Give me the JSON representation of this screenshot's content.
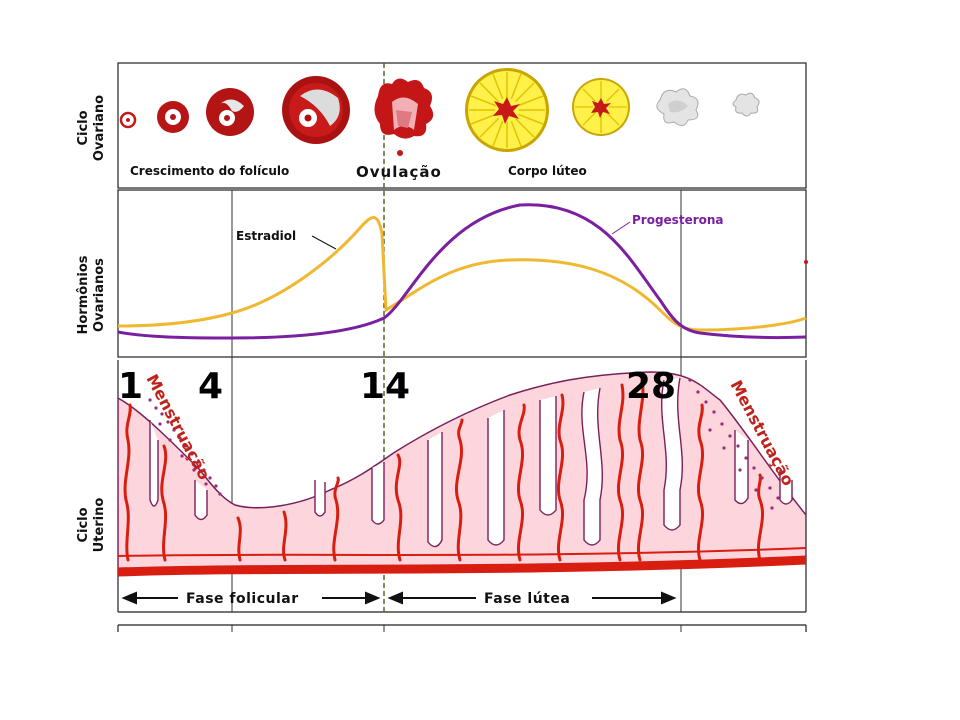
{
  "labels": {
    "ovarian_cycle": [
      "Ciclo",
      "Ovariano"
    ],
    "ovarian_hormones": [
      "Hormônios",
      "Ovarianos"
    ],
    "uterine_cycle": [
      "Ciclo",
      "Uterino"
    ]
  },
  "ovary": {
    "follicle_growth": "Crescimento do folículo",
    "ovulation": "Ovulação",
    "corpus_luteum": "Corpo lúteo"
  },
  "hormones": {
    "estradiol": "Estradiol",
    "progesterone": "Progesterona",
    "colors": {
      "estradiol": "#f0b830",
      "progesterone": "#7a1fa0"
    }
  },
  "uterus": {
    "days": [
      "1",
      "4",
      "14",
      "28"
    ],
    "menstruation": "Menstruação",
    "follicular_phase": "Fase folicular",
    "luteal_phase": "Fase lútea",
    "colors": {
      "tissue": "#fcd6dc",
      "vessel": "#d81e10",
      "gland": "#7a1f5a"
    }
  }
}
